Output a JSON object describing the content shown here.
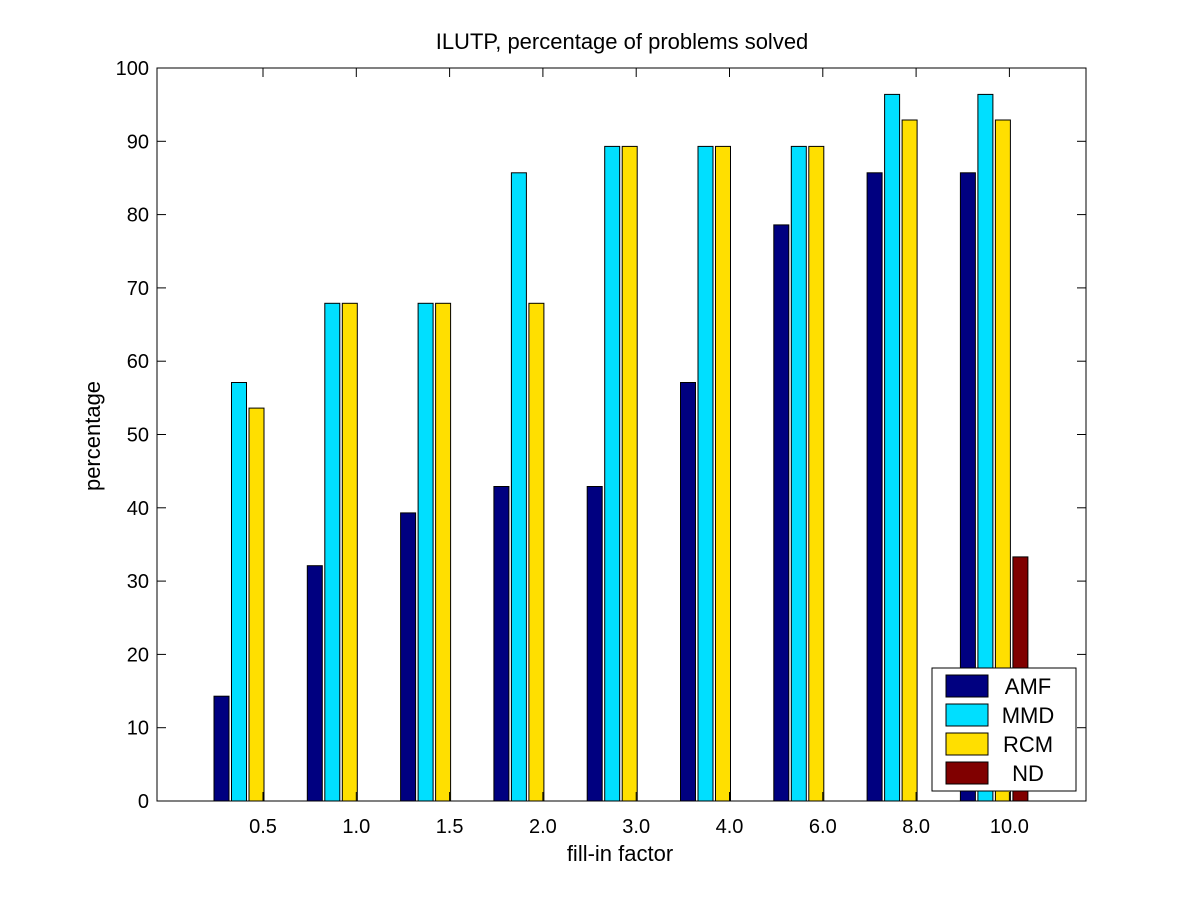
{
  "chart_data": {
    "type": "bar",
    "title": "ILUTP, percentage of problems solved",
    "xlabel": "fill-in factor",
    "ylabel": "percentage",
    "categories": [
      "0.5",
      "1.0",
      "1.5",
      "2.0",
      "3.0",
      "4.0",
      "6.0",
      "8.0",
      "10.0"
    ],
    "ylim": [
      0,
      100
    ],
    "yticks": [
      0,
      10,
      20,
      30,
      40,
      50,
      60,
      70,
      80,
      90,
      100
    ],
    "grid": false,
    "legend_position": "bottom-right",
    "series": [
      {
        "name": "AMF",
        "color": "#000080",
        "values": [
          14.3,
          32.1,
          39.3,
          42.9,
          42.9,
          57.1,
          78.6,
          85.7,
          85.7
        ]
      },
      {
        "name": "MMD",
        "color": "#00dfff",
        "values": [
          57.1,
          67.9,
          67.9,
          85.7,
          89.3,
          89.3,
          89.3,
          96.4,
          96.4
        ]
      },
      {
        "name": "RCM",
        "color": "#ffdf00",
        "values": [
          53.6,
          67.9,
          67.9,
          67.9,
          89.3,
          89.3,
          89.3,
          92.9,
          92.9
        ]
      },
      {
        "name": "ND",
        "color": "#800000",
        "values": [
          0,
          0,
          0,
          0,
          0,
          0,
          0,
          0,
          33.3
        ]
      }
    ]
  }
}
